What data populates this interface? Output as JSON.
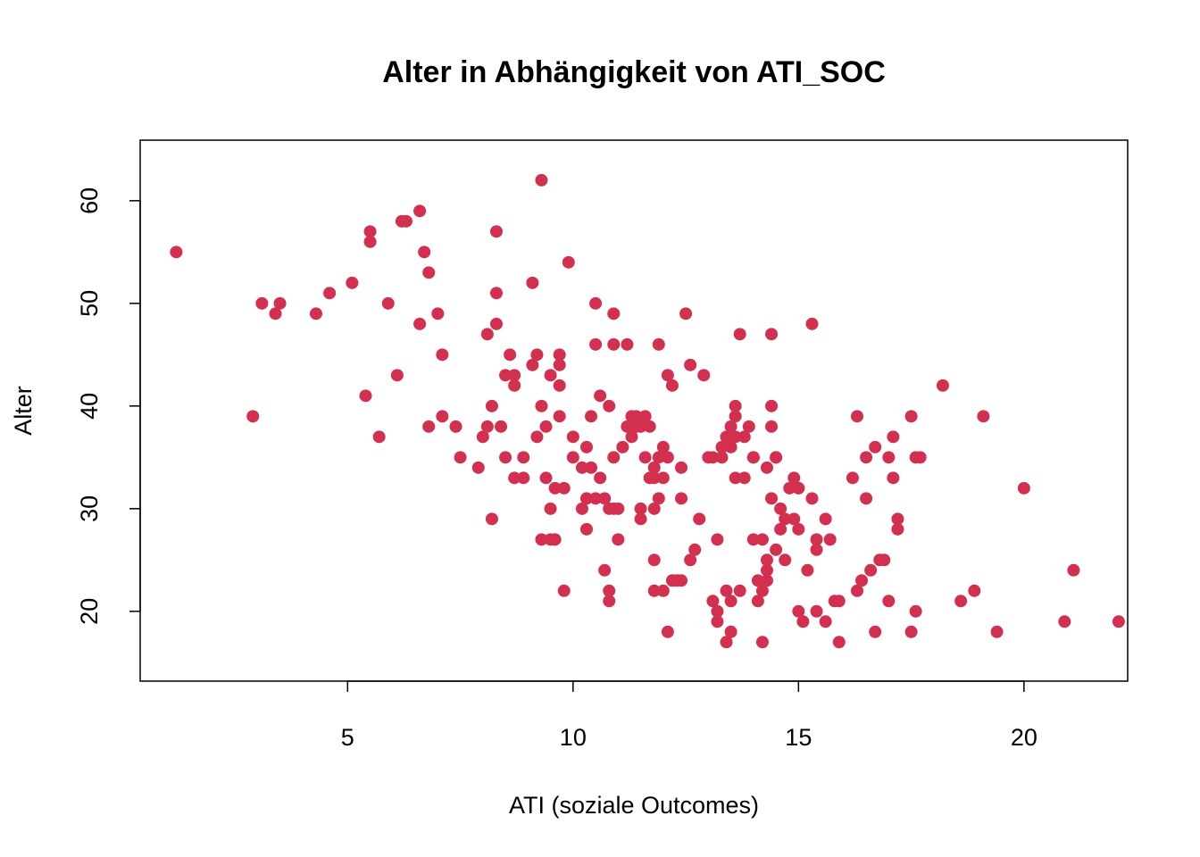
{
  "chart_data": {
    "type": "scatter",
    "title": "Alter in Abhängigkeit von ATI_SOC",
    "xlabel": "ATI (soziale Outcomes)",
    "ylabel": "Alter",
    "xlim": [
      0.4,
      22.3
    ],
    "ylim": [
      13.2,
      65.9
    ],
    "xticks": [
      5,
      10,
      15,
      20
    ],
    "yticks": [
      20,
      30,
      40,
      50,
      60
    ],
    "point_color": "#D3304F",
    "grid": false,
    "series": [
      {
        "points": [
          [
            1.2,
            55
          ],
          [
            2.9,
            39
          ],
          [
            3.1,
            50
          ],
          [
            3.4,
            49
          ],
          [
            3.5,
            50
          ],
          [
            4.3,
            49
          ],
          [
            4.6,
            51
          ],
          [
            5.1,
            52
          ],
          [
            5.4,
            41
          ],
          [
            5.5,
            57
          ],
          [
            5.5,
            56
          ],
          [
            5.7,
            37
          ],
          [
            5.9,
            50
          ],
          [
            6.1,
            43
          ],
          [
            6.2,
            58
          ],
          [
            6.3,
            58
          ],
          [
            6.6,
            59
          ],
          [
            6.6,
            48
          ],
          [
            6.7,
            55
          ],
          [
            6.8,
            38
          ],
          [
            6.8,
            53
          ],
          [
            7.0,
            49
          ],
          [
            7.1,
            45
          ],
          [
            7.1,
            39
          ],
          [
            7.4,
            38
          ],
          [
            7.5,
            35
          ],
          [
            7.9,
            34
          ],
          [
            8.0,
            37
          ],
          [
            8.1,
            38
          ],
          [
            8.1,
            47
          ],
          [
            8.2,
            40
          ],
          [
            8.2,
            29
          ],
          [
            8.3,
            57
          ],
          [
            8.3,
            51
          ],
          [
            8.3,
            48
          ],
          [
            8.4,
            38
          ],
          [
            8.5,
            43
          ],
          [
            8.5,
            35
          ],
          [
            8.6,
            45
          ],
          [
            8.7,
            43
          ],
          [
            8.7,
            42
          ],
          [
            8.7,
            33
          ],
          [
            8.9,
            35
          ],
          [
            8.9,
            33
          ],
          [
            9.1,
            52
          ],
          [
            9.1,
            44
          ],
          [
            9.2,
            45
          ],
          [
            9.2,
            37
          ],
          [
            9.3,
            62
          ],
          [
            9.3,
            40
          ],
          [
            9.3,
            27
          ],
          [
            9.4,
            38
          ],
          [
            9.4,
            33
          ],
          [
            9.5,
            43
          ],
          [
            9.5,
            30
          ],
          [
            9.5,
            27
          ],
          [
            9.6,
            32
          ],
          [
            9.6,
            27
          ],
          [
            9.7,
            45
          ],
          [
            9.7,
            44
          ],
          [
            9.7,
            42
          ],
          [
            9.7,
            39
          ],
          [
            9.8,
            32
          ],
          [
            9.8,
            22
          ],
          [
            9.9,
            54
          ],
          [
            10.0,
            37
          ],
          [
            10.0,
            35
          ],
          [
            10.2,
            34
          ],
          [
            10.2,
            30
          ],
          [
            10.3,
            36
          ],
          [
            10.3,
            31
          ],
          [
            10.3,
            28
          ],
          [
            10.4,
            34
          ],
          [
            10.4,
            39
          ],
          [
            10.5,
            50
          ],
          [
            10.5,
            46
          ],
          [
            10.5,
            31
          ],
          [
            10.6,
            41
          ],
          [
            10.6,
            33
          ],
          [
            10.7,
            31
          ],
          [
            10.7,
            24
          ],
          [
            10.8,
            40
          ],
          [
            10.8,
            30
          ],
          [
            10.8,
            22
          ],
          [
            10.8,
            21
          ],
          [
            10.9,
            49
          ],
          [
            10.9,
            46
          ],
          [
            10.9,
            35
          ],
          [
            10.9,
            30
          ],
          [
            11.0,
            30
          ],
          [
            11.0,
            27
          ],
          [
            11.1,
            36
          ],
          [
            11.2,
            46
          ],
          [
            11.2,
            38
          ],
          [
            11.3,
            37
          ],
          [
            11.3,
            39
          ],
          [
            11.4,
            38
          ],
          [
            11.4,
            39
          ],
          [
            11.5,
            30
          ],
          [
            11.5,
            29
          ],
          [
            11.5,
            38
          ],
          [
            11.6,
            35
          ],
          [
            11.6,
            39
          ],
          [
            11.7,
            38
          ],
          [
            11.7,
            33
          ],
          [
            11.8,
            34
          ],
          [
            11.8,
            33
          ],
          [
            11.8,
            30
          ],
          [
            11.8,
            25
          ],
          [
            11.8,
            22
          ],
          [
            11.9,
            35
          ],
          [
            11.9,
            31
          ],
          [
            11.9,
            46
          ],
          [
            12.0,
            36
          ],
          [
            12.0,
            33
          ],
          [
            12.0,
            22
          ],
          [
            12.1,
            35
          ],
          [
            12.1,
            18
          ],
          [
            12.1,
            43
          ],
          [
            12.2,
            42
          ],
          [
            12.2,
            23
          ],
          [
            12.3,
            23
          ],
          [
            12.4,
            34
          ],
          [
            12.4,
            31
          ],
          [
            12.4,
            23
          ],
          [
            12.5,
            49
          ],
          [
            12.6,
            44
          ],
          [
            12.6,
            25
          ],
          [
            12.7,
            26
          ],
          [
            12.8,
            29
          ],
          [
            12.9,
            43
          ],
          [
            13.0,
            35
          ],
          [
            13.1,
            35
          ],
          [
            13.1,
            21
          ],
          [
            13.2,
            27
          ],
          [
            13.2,
            20
          ],
          [
            13.2,
            19
          ],
          [
            13.3,
            36
          ],
          [
            13.3,
            35
          ],
          [
            13.4,
            37
          ],
          [
            13.4,
            17
          ],
          [
            13.4,
            22
          ],
          [
            13.5,
            38
          ],
          [
            13.5,
            36
          ],
          [
            13.5,
            21
          ],
          [
            13.5,
            18
          ],
          [
            13.6,
            39
          ],
          [
            13.6,
            37
          ],
          [
            13.6,
            33
          ],
          [
            13.6,
            40
          ],
          [
            13.7,
            47
          ],
          [
            13.7,
            22
          ],
          [
            13.8,
            33
          ],
          [
            13.8,
            37
          ],
          [
            13.9,
            38
          ],
          [
            14.0,
            35
          ],
          [
            14.0,
            27
          ],
          [
            14.0,
            35
          ],
          [
            14.1,
            23
          ],
          [
            14.1,
            21
          ],
          [
            14.2,
            27
          ],
          [
            14.2,
            17
          ],
          [
            14.2,
            22
          ],
          [
            14.3,
            34
          ],
          [
            14.3,
            25
          ],
          [
            14.3,
            24
          ],
          [
            14.3,
            23
          ],
          [
            14.4,
            47
          ],
          [
            14.4,
            40
          ],
          [
            14.4,
            38
          ],
          [
            14.4,
            31
          ],
          [
            14.5,
            35
          ],
          [
            14.5,
            26
          ],
          [
            14.5,
            35
          ],
          [
            14.6,
            30
          ],
          [
            14.6,
            28
          ],
          [
            14.7,
            29
          ],
          [
            14.7,
            25
          ],
          [
            14.8,
            32
          ],
          [
            14.9,
            33
          ],
          [
            14.9,
            29
          ],
          [
            15.0,
            32
          ],
          [
            15.0,
            32
          ],
          [
            15.0,
            28
          ],
          [
            15.0,
            20
          ],
          [
            15.1,
            19
          ],
          [
            15.2,
            24
          ],
          [
            15.3,
            31
          ],
          [
            15.3,
            48
          ],
          [
            15.4,
            27
          ],
          [
            15.4,
            26
          ],
          [
            15.4,
            20
          ],
          [
            15.6,
            29
          ],
          [
            15.6,
            19
          ],
          [
            15.7,
            27
          ],
          [
            15.8,
            21
          ],
          [
            15.9,
            17
          ],
          [
            15.9,
            21
          ],
          [
            16.2,
            33
          ],
          [
            16.3,
            39
          ],
          [
            16.3,
            22
          ],
          [
            16.4,
            23
          ],
          [
            16.5,
            35
          ],
          [
            16.5,
            31
          ],
          [
            16.6,
            24
          ],
          [
            16.7,
            36
          ],
          [
            16.7,
            18
          ],
          [
            16.8,
            25
          ],
          [
            16.9,
            25
          ],
          [
            17.0,
            35
          ],
          [
            17.0,
            21
          ],
          [
            17.1,
            37
          ],
          [
            17.1,
            33
          ],
          [
            17.2,
            28
          ],
          [
            17.2,
            29
          ],
          [
            17.5,
            39
          ],
          [
            17.5,
            18
          ],
          [
            17.6,
            35
          ],
          [
            17.6,
            20
          ],
          [
            17.7,
            35
          ],
          [
            18.2,
            42
          ],
          [
            18.6,
            21
          ],
          [
            18.9,
            22
          ],
          [
            19.1,
            39
          ],
          [
            19.4,
            18
          ],
          [
            20.0,
            32
          ],
          [
            20.9,
            19
          ],
          [
            21.1,
            24
          ],
          [
            22.1,
            19
          ]
        ]
      }
    ]
  }
}
